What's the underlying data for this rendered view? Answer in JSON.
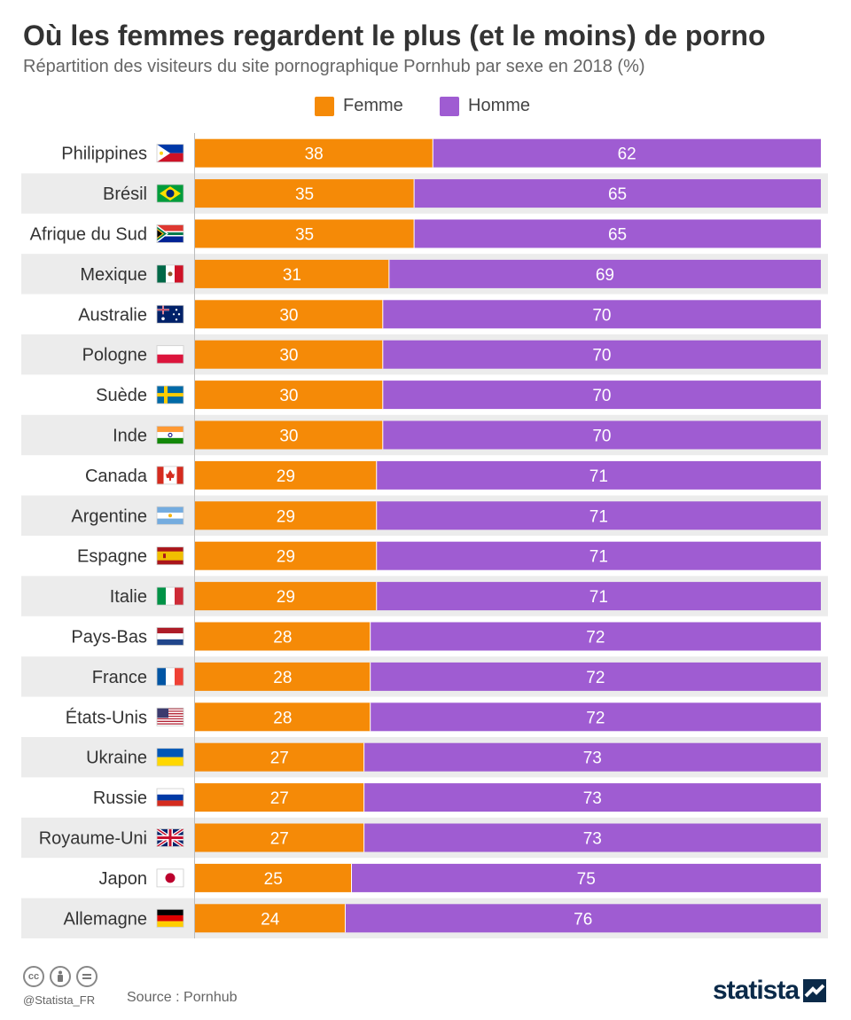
{
  "title": "Où les femmes regardent le plus (et le moins) de porno",
  "subtitle": "Répartition des visiteurs du site pornographique Pornhub par sexe en 2018 (%)",
  "legend": [
    {
      "label": "Femme",
      "color": "#f58a07"
    },
    {
      "label": "Homme",
      "color": "#9f5cd2"
    }
  ],
  "chart_data": {
    "type": "bar",
    "orientation": "horizontal",
    "stacked": true,
    "categories": [
      "Philippines",
      "Brésil",
      "Afrique du Sud",
      "Mexique",
      "Australie",
      "Pologne",
      "Suède",
      "Inde",
      "Canada",
      "Argentine",
      "Espagne",
      "Italie",
      "Pays-Bas",
      "France",
      "États-Unis",
      "Ukraine",
      "Russie",
      "Royaume-Uni",
      "Japon",
      "Allemagne"
    ],
    "series": [
      {
        "name": "Femme",
        "color": "#f58a07",
        "values": [
          38,
          35,
          35,
          31,
          30,
          30,
          30,
          30,
          29,
          29,
          29,
          29,
          28,
          28,
          28,
          27,
          27,
          27,
          25,
          24
        ]
      },
      {
        "name": "Homme",
        "color": "#9f5cd2",
        "values": [
          62,
          65,
          65,
          69,
          70,
          70,
          70,
          70,
          71,
          71,
          71,
          71,
          72,
          72,
          72,
          73,
          73,
          73,
          75,
          76
        ]
      }
    ],
    "xlim": [
      0,
      100
    ],
    "flags": [
      "flag-philippines-icon",
      "flag-brazil-icon",
      "flag-south-africa-icon",
      "flag-mexico-icon",
      "flag-australia-icon",
      "flag-poland-icon",
      "flag-sweden-icon",
      "flag-india-icon",
      "flag-canada-icon",
      "flag-argentina-icon",
      "flag-spain-icon",
      "flag-italy-icon",
      "flag-netherlands-icon",
      "flag-france-icon",
      "flag-usa-icon",
      "flag-ukraine-icon",
      "flag-russia-icon",
      "flag-uk-icon",
      "flag-japan-icon",
      "flag-germany-icon"
    ],
    "row_shading": "alternate",
    "legend_position": "top-center"
  },
  "footer": {
    "handle": "@Statista_FR",
    "source": "Source : Pornhub",
    "brand": "statista",
    "license_icons": [
      "cc-icon",
      "by-icon",
      "nd-icon"
    ]
  }
}
